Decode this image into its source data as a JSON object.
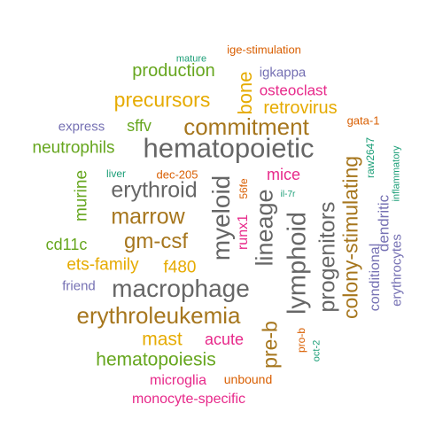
{
  "palette": {
    "teal": "#1b9e77",
    "orange": "#d95f02",
    "purple": "#7570b3",
    "magenta": "#e7298a",
    "green": "#66a61e",
    "gold": "#e6ab02",
    "brown": "#a6761d",
    "gray": "#666666"
  },
  "words": [
    {
      "text": "hematopoietic",
      "color": "#666666"
    },
    {
      "text": "macrophage",
      "color": "#666666"
    },
    {
      "text": "erythroleukemia",
      "color": "#a6761d"
    },
    {
      "text": "commitment",
      "color": "#a6761d"
    },
    {
      "text": "erythroid",
      "color": "#666666"
    },
    {
      "text": "marrow",
      "color": "#a6761d"
    },
    {
      "text": "gm-csf",
      "color": "#a6761d"
    },
    {
      "text": "precursors",
      "color": "#e6ab02"
    },
    {
      "text": "progenitors",
      "color": "#666666"
    },
    {
      "text": "lymphoid",
      "color": "#666666"
    },
    {
      "text": "myeloid",
      "color": "#666666"
    },
    {
      "text": "lineage",
      "color": "#666666"
    },
    {
      "text": "colony-stimulating",
      "color": "#a6761d"
    },
    {
      "text": "hematopoiesis",
      "color": "#66a61e"
    },
    {
      "text": "production",
      "color": "#66a61e"
    },
    {
      "text": "retrovirus",
      "color": "#e6ab02"
    },
    {
      "text": "ets-family",
      "color": "#e6ab02"
    },
    {
      "text": "f480",
      "color": "#e6ab02"
    },
    {
      "text": "mast",
      "color": "#e6ab02"
    },
    {
      "text": "neutrophils",
      "color": "#66a61e"
    },
    {
      "text": "pre-b",
      "color": "#a6761d"
    },
    {
      "text": "bone",
      "color": "#e6ab02"
    },
    {
      "text": "murine",
      "color": "#66a61e"
    },
    {
      "text": "osteoclast",
      "color": "#e7298a"
    },
    {
      "text": "cd11c",
      "color": "#66a61e"
    },
    {
      "text": "sffv",
      "color": "#66a61e"
    },
    {
      "text": "mice",
      "color": "#e7298a"
    },
    {
      "text": "acute",
      "color": "#e7298a"
    },
    {
      "text": "microglia",
      "color": "#e7298a"
    },
    {
      "text": "monocyte-specific",
      "color": "#e7298a"
    },
    {
      "text": "igkappa",
      "color": "#7570b3"
    },
    {
      "text": "express",
      "color": "#7570b3"
    },
    {
      "text": "friend",
      "color": "#7570b3"
    },
    {
      "text": "runx1",
      "color": "#e7298a"
    },
    {
      "text": "dendritic",
      "color": "#7570b3"
    },
    {
      "text": "erythrocytes",
      "color": "#7570b3"
    },
    {
      "text": "conditional",
      "color": "#7570b3"
    },
    {
      "text": "unbound",
      "color": "#d95f02"
    },
    {
      "text": "ige-stimulation",
      "color": "#d95f02"
    },
    {
      "text": "dec-205",
      "color": "#d95f02"
    },
    {
      "text": "gata-1",
      "color": "#d95f02"
    },
    {
      "text": "56fe",
      "color": "#d95f02"
    },
    {
      "text": "pro-b",
      "color": "#d95f02"
    },
    {
      "text": "mature",
      "color": "#1b9e77"
    },
    {
      "text": "liver",
      "color": "#1b9e77"
    },
    {
      "text": "il-7r",
      "color": "#1b9e77"
    },
    {
      "text": "raw2647",
      "color": "#1b9e77"
    },
    {
      "text": "inflammatory",
      "color": "#1b9e77"
    },
    {
      "text": "oct-2",
      "color": "#1b9e77"
    }
  ]
}
